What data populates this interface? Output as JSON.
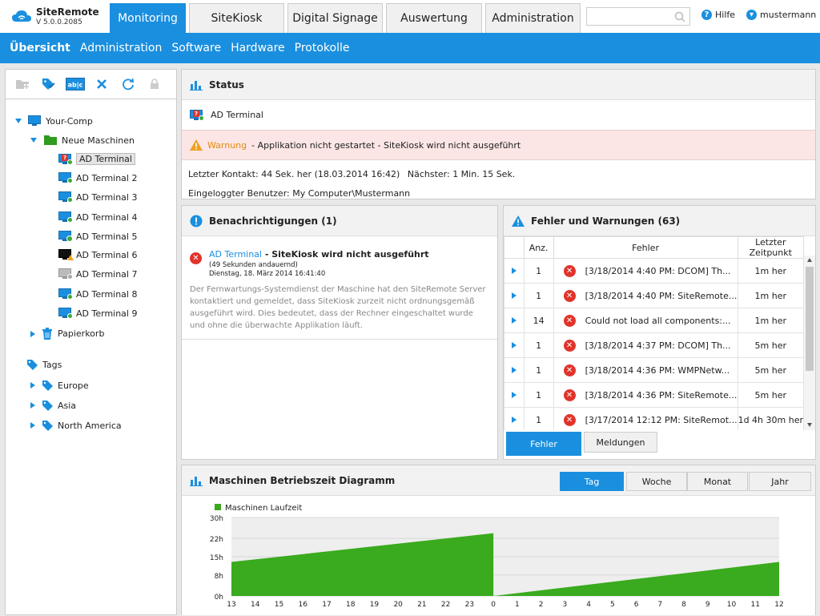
{
  "app": {
    "name": "SiteRemote",
    "version": "V 5.0.0.2085"
  },
  "tabs": [
    "Monitoring",
    "SiteKiosk",
    "Digital Signage",
    "Auswertung",
    "Administration"
  ],
  "help_label": "Hilfe",
  "user_label": "mustermann",
  "subnav": [
    "Übersicht",
    "Administration",
    "Software",
    "Hardware",
    "Protokolle"
  ],
  "tree": {
    "root": "Your-Comp",
    "group": "Neue Maschinen",
    "machines": [
      "AD Terminal",
      "AD Terminal 2",
      "AD Terminal 3",
      "AD Terminal 4",
      "AD Terminal 5",
      "AD Terminal 6",
      "AD Terminal 7",
      "AD Terminal 8",
      "AD Terminal 9"
    ],
    "trash": "Papierkorb",
    "tags_label": "Tags",
    "tags": [
      "Europe",
      "Asia",
      "North America"
    ]
  },
  "status": {
    "title": "Status",
    "machine": "AD Terminal",
    "warn_label": "Warnung",
    "warn_text": "-  Applikation nicht gestartet - SiteKiosk wird nicht ausgeführt",
    "contact_label": "Letzter Kontakt:",
    "contact_value": "44 Sek. her (18.03.2014 16:42)",
    "next_label": "Nächster:",
    "next_value": "1 Min. 15 Sek.",
    "user_label": "Eingeloggter Benutzer:",
    "user_value": "My Computer\\Mustermann"
  },
  "notifications": {
    "title": "Benachrichtigungen (1)",
    "link": "AD Terminal",
    "headline": " - SiteKiosk wird nicht ausgeführt",
    "duration": "(49 Sekunden andauernd)",
    "date": "Dienstag, 18. März 2014 16:41:40",
    "body": "Der Fernwartungs-Systemdienst der Maschine hat den SiteRemote Server kontaktiert und gemeldet, dass SiteKiosk zurzeit nicht ordnungsgemäß ausgeführt wird. Dies bedeutet, dass der Rechner eingeschaltet wurde und ohne die überwachte Applikation läuft."
  },
  "errors": {
    "title": "Fehler und Warnungen (63)",
    "col_count": "Anz.",
    "col_error": "Fehler",
    "col_time": "Letzter Zeitpunkt",
    "rows": [
      {
        "count": "1",
        "text": "[3/18/2014 4:40 PM: DCOM] Th...",
        "time": "1m her"
      },
      {
        "count": "1",
        "text": "[3/18/2014 4:40 PM: SiteRemote...",
        "time": "1m her"
      },
      {
        "count": "14",
        "text": "Could not load all components:...",
        "time": "1m her"
      },
      {
        "count": "1",
        "text": "[3/18/2014 4:37 PM: DCOM] Th...",
        "time": "5m her"
      },
      {
        "count": "1",
        "text": "[3/18/2014 4:36 PM: WMPNetw...",
        "time": "5m her"
      },
      {
        "count": "1",
        "text": "[3/18/2014 4:36 PM: SiteRemote...",
        "time": "5m her"
      },
      {
        "count": "1",
        "text": "[3/17/2014 12:12 PM: SiteRemot...",
        "time": "1d 4h 30m her"
      }
    ],
    "btn_errors": "Fehler",
    "btn_messages": "Meldungen"
  },
  "uptime": {
    "title": "Maschinen Betriebszeit Diagramm",
    "ranges": [
      "Tag",
      "Woche",
      "Monat",
      "Jahr"
    ],
    "legend": "Maschinen Laufzeit",
    "y_ticks": [
      "30h",
      "22h",
      "15h",
      "8h",
      "0h"
    ],
    "x_ticks": [
      "13",
      "14",
      "15",
      "16",
      "17",
      "18",
      "19",
      "20",
      "21",
      "22",
      "23",
      "0",
      "1",
      "2",
      "3",
      "4",
      "5",
      "6",
      "7",
      "8",
      "9",
      "10",
      "11",
      "12"
    ],
    "series": [
      {
        "x": "13",
        "y": 13
      },
      {
        "x": "0",
        "y": 24
      },
      {
        "x": "0",
        "y": 0
      },
      {
        "x": "12",
        "y": 13
      }
    ],
    "color": "#3aaa1e"
  }
}
